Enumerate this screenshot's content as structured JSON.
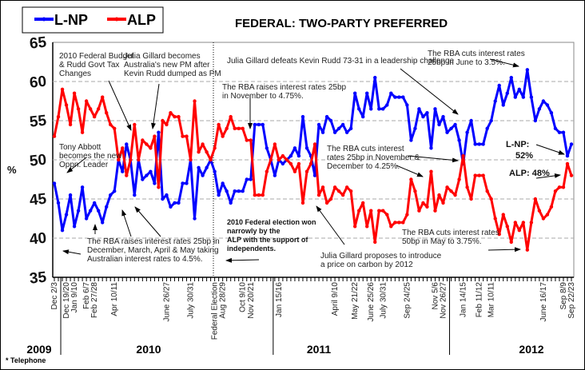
{
  "chart_data": {
    "type": "line",
    "title": "FEDERAL: TWO-PARTY PREFERRED",
    "ylabel": "%",
    "ylim": [
      35,
      65
    ],
    "yticks": [
      35,
      40,
      45,
      50,
      55,
      60,
      65
    ],
    "grid": "horizontal dashed",
    "legend_position": "top-left",
    "footnote": "* Telephone",
    "years": [
      {
        "label": "2009",
        "from_index": -3,
        "to_index": 2
      },
      {
        "label": "2010",
        "from_index": 2,
        "to_index": 55
      },
      {
        "label": "2011",
        "from_index": 55,
        "to_index": 99
      },
      {
        "label": "2012",
        "from_index": 99,
        "to_index": 130
      }
    ],
    "event_marker_index": 39.8,
    "tick_labels": [
      {
        "label": "Dec 2/3",
        "index": 0
      },
      {
        "label": "Dec 19/20",
        "index": 3
      },
      {
        "label": "Jan 9/10",
        "index": 5
      },
      {
        "label": "Feb 6/7",
        "index": 8
      },
      {
        "label": "Feb 27/28",
        "index": 10
      },
      {
        "label": "Apr 10/11",
        "index": 15
      },
      {
        "label": "June 26/27",
        "index": 28
      },
      {
        "label": "July 30/31",
        "index": 34
      },
      {
        "label": "Federal Election",
        "index": 40
      },
      {
        "label": "Aug 28/29",
        "index": 42
      },
      {
        "label": "Oct 9/10",
        "index": 47
      },
      {
        "label": "Nov 20/21",
        "index": 49
      },
      {
        "label": "Jan 15/16",
        "index": 56
      },
      {
        "label": "April 9/10",
        "index": 70
      },
      {
        "label": "May 21/22",
        "index": 75
      },
      {
        "label": "June 25/26",
        "index": 79
      },
      {
        "label": "July 30/31",
        "index": 82
      },
      {
        "label": "Sep 24/25",
        "index": 88
      },
      {
        "label": "Nov 5/6",
        "index": 95
      },
      {
        "label": "Nov 26/27",
        "index": 97
      },
      {
        "label": "Jan 14/15",
        "index": 102
      },
      {
        "label": "Feb 11/12",
        "index": 106
      },
      {
        "label": "Mar 10/11",
        "index": 109
      },
      {
        "label": "June 16/17",
        "index": 122
      },
      {
        "label": "Sep 8/9",
        "index": 127
      },
      {
        "label": "Sep 22/23",
        "index": 129
      }
    ],
    "series": [
      {
        "name": "L-NP",
        "color": "#0000ff",
        "values": []
      },
      {
        "name": "ALP",
        "color": "#ff0000",
        "values": [
          53,
          55.5,
          59,
          57,
          54.5,
          58.5,
          56.5,
          53.5,
          57.5,
          56.5,
          55.5,
          56.5,
          58,
          56,
          54.5,
          54,
          50,
          51.5,
          48,
          50,
          54.5,
          50,
          52.5,
          52,
          51.5,
          53,
          46.5,
          55,
          54.5,
          56,
          55.5,
          55.5,
          53,
          53,
          50,
          57.5,
          51,
          52,
          51,
          50,
          51.5,
          54.5,
          53,
          54,
          55.5,
          54,
          54,
          54,
          52.5,
          52.5,
          45.5,
          45.5,
          45.5,
          48.5,
          50,
          52,
          50,
          50.5,
          50,
          49.5,
          48.5,
          49.5,
          44.5,
          48.5,
          49.5,
          52,
          45.5,
          46.5,
          44.5,
          45,
          46.5,
          46,
          45.5,
          46.5,
          46,
          41.5,
          43.5,
          44.5,
          41.5,
          43.5,
          39.5,
          43.5,
          43.5,
          43,
          41.5,
          42,
          42,
          42,
          43,
          47.5,
          46,
          43.5,
          44.5,
          44,
          48.5,
          43.5,
          45.5,
          44.5,
          46.5,
          46,
          45.5,
          47.5,
          50.5,
          46.5,
          45,
          48,
          48,
          48,
          46,
          45,
          42.5,
          40.5,
          43,
          41.5,
          39.5,
          42,
          41,
          42,
          38.5,
          42,
          45,
          43.5,
          42.5,
          43,
          44,
          46,
          46.5,
          46.5,
          49.5,
          48
        ]
      }
    ],
    "end_labels": {
      "lnp": "L-NP:",
      "lnp_value": "52%",
      "alp": "ALP: 48%"
    },
    "annotations": [
      [
        "2010 Federal Budget",
        "& Rudd Govt Tax",
        "Changes"
      ],
      [
        "Julia Gillard becomes",
        "Australia's new PM after",
        "Kevin Rudd dumped as PM"
      ],
      [
        "Julia Gillard defeats Kevin Rudd 73-31 in a leadership challenge"
      ],
      [
        "The RBA cuts interest rates",
        "25bp in June to 3.5%."
      ],
      [
        "The RBA raises interest rates 25bp",
        "in November to 4.75%."
      ],
      [
        "Tony Abbott",
        "becomes the new",
        "Oppn. Leader"
      ],
      [
        "The RBA cuts interest",
        "rates 25bp in November &",
        "December to 4.25%."
      ],
      [
        "The RBA raises interest rates 25bp in",
        "December, March, April & May taking",
        "Australian interest rates to 4.5%."
      ],
      [
        "2010 Federal election won",
        "narrowly by the",
        "ALP with the support of",
        "independents."
      ],
      [
        "Julia Gillard proposes to introduce",
        "a price on carbon by 2012"
      ],
      [
        "The RBA cuts interest rates",
        "50bp in May to 3.75%."
      ]
    ]
  }
}
